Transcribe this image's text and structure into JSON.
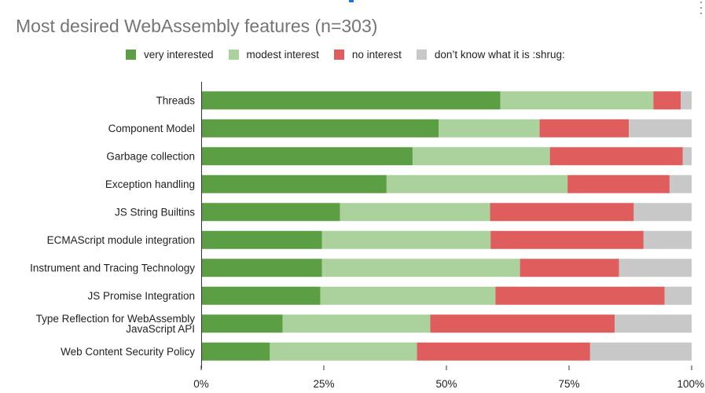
{
  "chart_data": {
    "type": "bar",
    "orientation": "horizontal",
    "stacked": true,
    "title": "Most desired WebAssembly features (n=303)",
    "legend_position": "top",
    "categories": [
      "Threads",
      "Component Model",
      "Garbage collection",
      "Exception handling",
      "JS String Builtins",
      "ECMAScript module integration",
      "Instrument and Tracing Technology",
      "JS Promise Integration",
      "Type Reflection for WebAssembly JavaScript API",
      "Web Content Security Policy"
    ],
    "category_lines": [
      [
        "Threads"
      ],
      [
        "Component Model"
      ],
      [
        "Garbage collection"
      ],
      [
        "Exception handling"
      ],
      [
        "JS String Builtins"
      ],
      [
        "ECMAScript module integration"
      ],
      [
        "Instrument and Tracing Technology"
      ],
      [
        "JS Promise Integration"
      ],
      [
        "Type Reflection for WebAssembly",
        "JavaScript API"
      ],
      [
        "Web Content Security Policy"
      ]
    ],
    "series": [
      {
        "name": "very interested",
        "color": "#5c9e43",
        "values": [
          61,
          48.4,
          43.1,
          37.8,
          28.3,
          24.6,
          24.6,
          24.3,
          16.6,
          14
        ]
      },
      {
        "name": "modest interest",
        "color": "#abd19c",
        "values": [
          31.2,
          20.6,
          28,
          36.9,
          30.6,
          34.4,
          40.4,
          35.7,
          30.1,
          30
        ]
      },
      {
        "name": "no interest",
        "color": "#e05d5d",
        "values": [
          5.6,
          18.2,
          27.1,
          20.8,
          29.3,
          31.2,
          20.2,
          34.5,
          37.6,
          35.3
        ]
      },
      {
        "name": "don’t know what it is :shrug:",
        "color": "#c8c8c8",
        "values": [
          2.2,
          12.8,
          1.8,
          4.5,
          11.8,
          9.8,
          14.8,
          5.5,
          15.7,
          20.7
        ]
      }
    ],
    "xlim": [
      0,
      100
    ],
    "x_ticks": [
      "0%",
      "25%",
      "50%",
      "75%",
      "100%"
    ],
    "grid": false
  }
}
